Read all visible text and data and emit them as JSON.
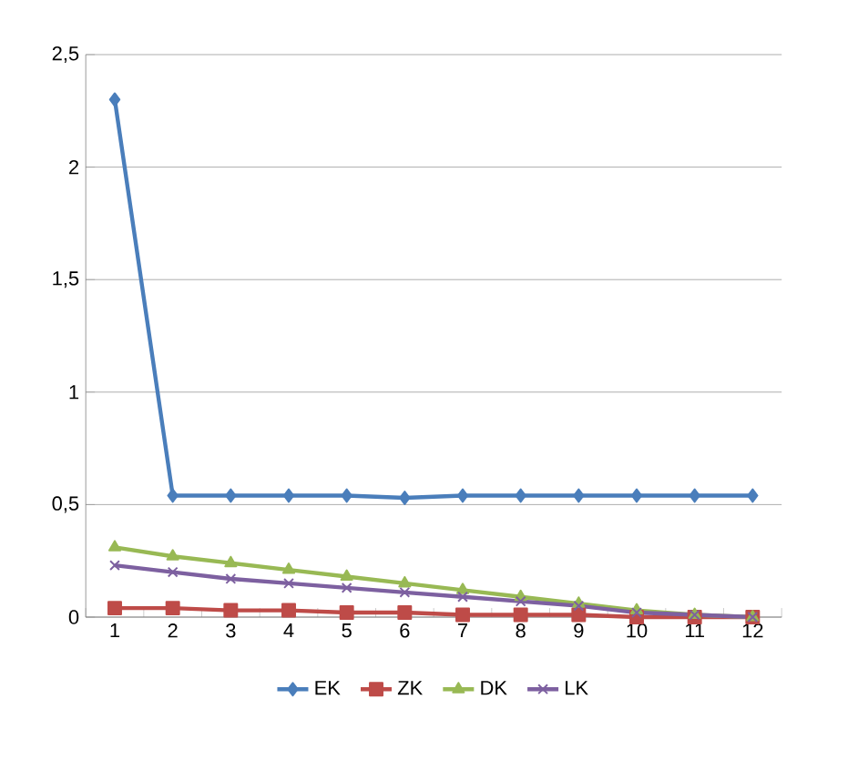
{
  "chart_data": {
    "type": "line",
    "categories": [
      "1",
      "2",
      "3",
      "4",
      "5",
      "6",
      "7",
      "8",
      "9",
      "10",
      "11",
      "12"
    ],
    "series": [
      {
        "name": "EK",
        "color": "#4a7ebb",
        "marker": "diamond",
        "values": [
          2.3,
          0.54,
          0.54,
          0.54,
          0.54,
          0.53,
          0.54,
          0.54,
          0.54,
          0.54,
          0.54,
          0.54
        ]
      },
      {
        "name": "ZK",
        "color": "#be4b48",
        "marker": "square",
        "values": [
          0.04,
          0.04,
          0.03,
          0.03,
          0.02,
          0.02,
          0.01,
          0.01,
          0.01,
          0.0,
          0.0,
          0.0
        ]
      },
      {
        "name": "DK",
        "color": "#98b954",
        "marker": "triangle",
        "values": [
          0.31,
          0.27,
          0.24,
          0.21,
          0.18,
          0.15,
          0.12,
          0.09,
          0.06,
          0.03,
          0.01,
          0.0
        ]
      },
      {
        "name": "LK",
        "color": "#7d60a0",
        "marker": "cross",
        "values": [
          0.23,
          0.2,
          0.17,
          0.15,
          0.13,
          0.11,
          0.09,
          0.07,
          0.05,
          0.02,
          0.01,
          0.0
        ]
      }
    ],
    "ylim": [
      0,
      2.5
    ],
    "yticks": [
      0,
      {
        "value": 0.5,
        "label": "0,5"
      },
      1,
      {
        "value": 1.5,
        "label": "1,5"
      },
      2,
      {
        "value": 2.5,
        "label": "2,5"
      }
    ],
    "grid": "y",
    "legend": "bottom"
  }
}
